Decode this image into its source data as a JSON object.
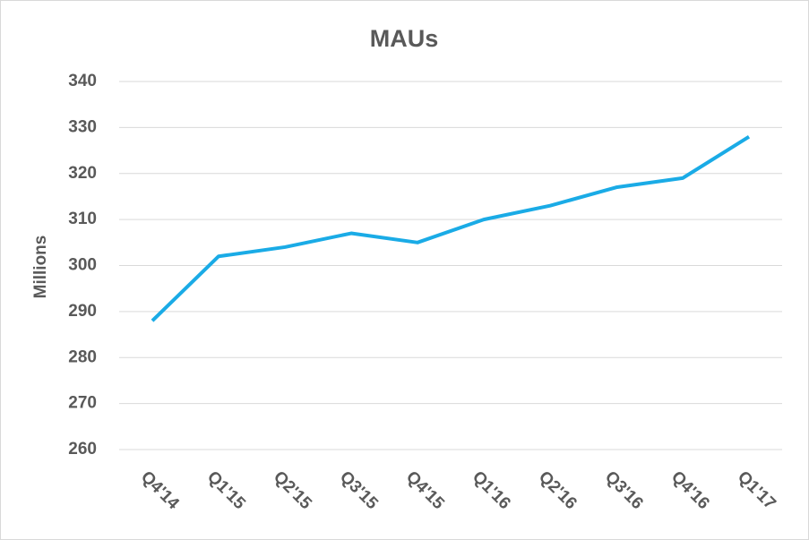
{
  "chart_data": {
    "type": "line",
    "title": "MAUs",
    "y_label": "Millions",
    "categories": [
      "Q4'14",
      "Q1'15",
      "Q2'15",
      "Q3'15",
      "Q4'15",
      "Q1'16",
      "Q2'16",
      "Q3'16",
      "Q4'16",
      "Q1'17"
    ],
    "series": [
      {
        "name": "MAUs",
        "color": "#1aabe6",
        "values": [
          288,
          302,
          304,
          307,
          305,
          310,
          313,
          317,
          319,
          328
        ]
      }
    ],
    "ylim": [
      260,
      340
    ],
    "yticks": [
      260,
      270,
      280,
      290,
      300,
      310,
      320,
      330,
      340
    ],
    "grid": true
  }
}
